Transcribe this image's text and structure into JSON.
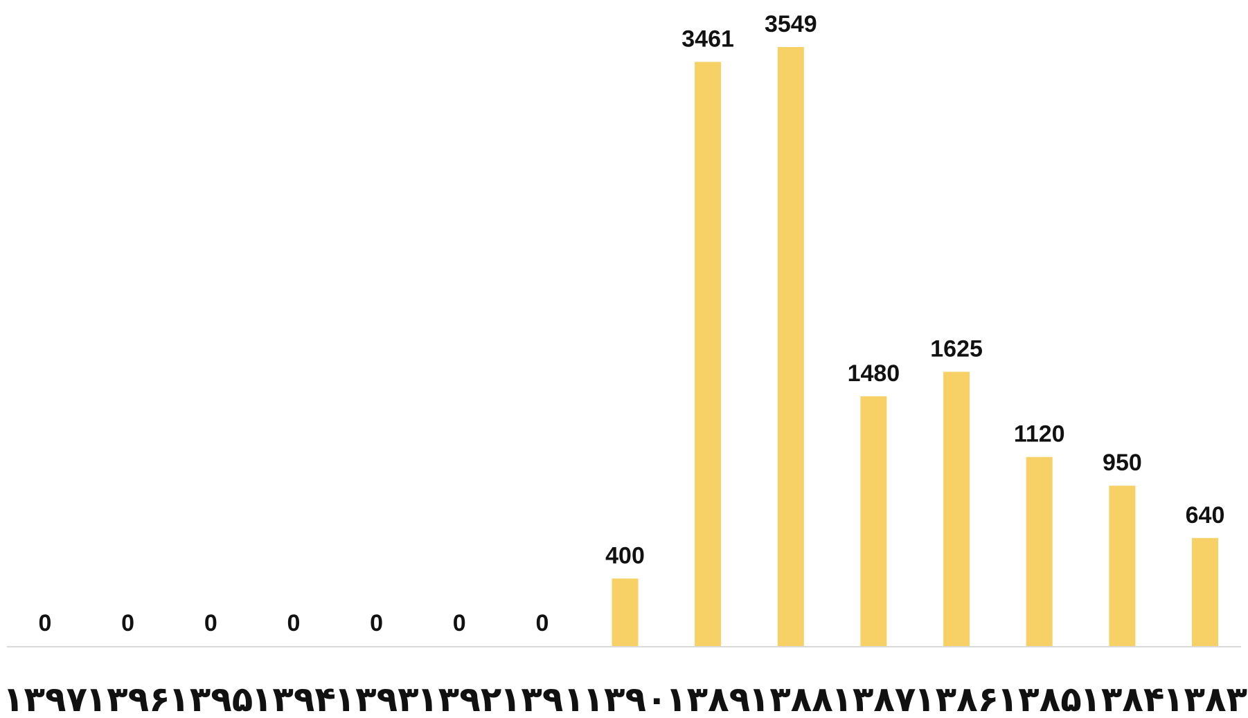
{
  "chart_data": {
    "type": "bar",
    "categories": [
      "۱۳۹۷",
      "۱۳۹۶",
      "۱۳۹۵",
      "۱۳۹۴",
      "۱۳۹۳",
      "۱۳۹۲",
      "۱۳۹۱",
      "۱۳۹۰",
      "۱۳۸۹",
      "۱۳۸۸",
      "۱۳۸۷",
      "۱۳۸۶",
      "۱۳۸۵",
      "۱۳۸۴",
      "۱۳۸۳"
    ],
    "values": [
      0,
      0,
      0,
      0,
      0,
      0,
      0,
      400,
      3461,
      3549,
      1480,
      1625,
      1120,
      950,
      640
    ],
    "data_labels": [
      "0",
      "0",
      "0",
      "0",
      "0",
      "0",
      "0",
      "400",
      "3461",
      "3549",
      "1480",
      "1625",
      "1120",
      "950",
      "640"
    ],
    "title": "",
    "xlabel": "",
    "ylabel": "",
    "ylim": [
      0,
      3549
    ],
    "grid": false,
    "legend": "none",
    "colors": {
      "bar": "#F7D066",
      "axis": "#D9D9D9",
      "text": "#111111"
    }
  }
}
